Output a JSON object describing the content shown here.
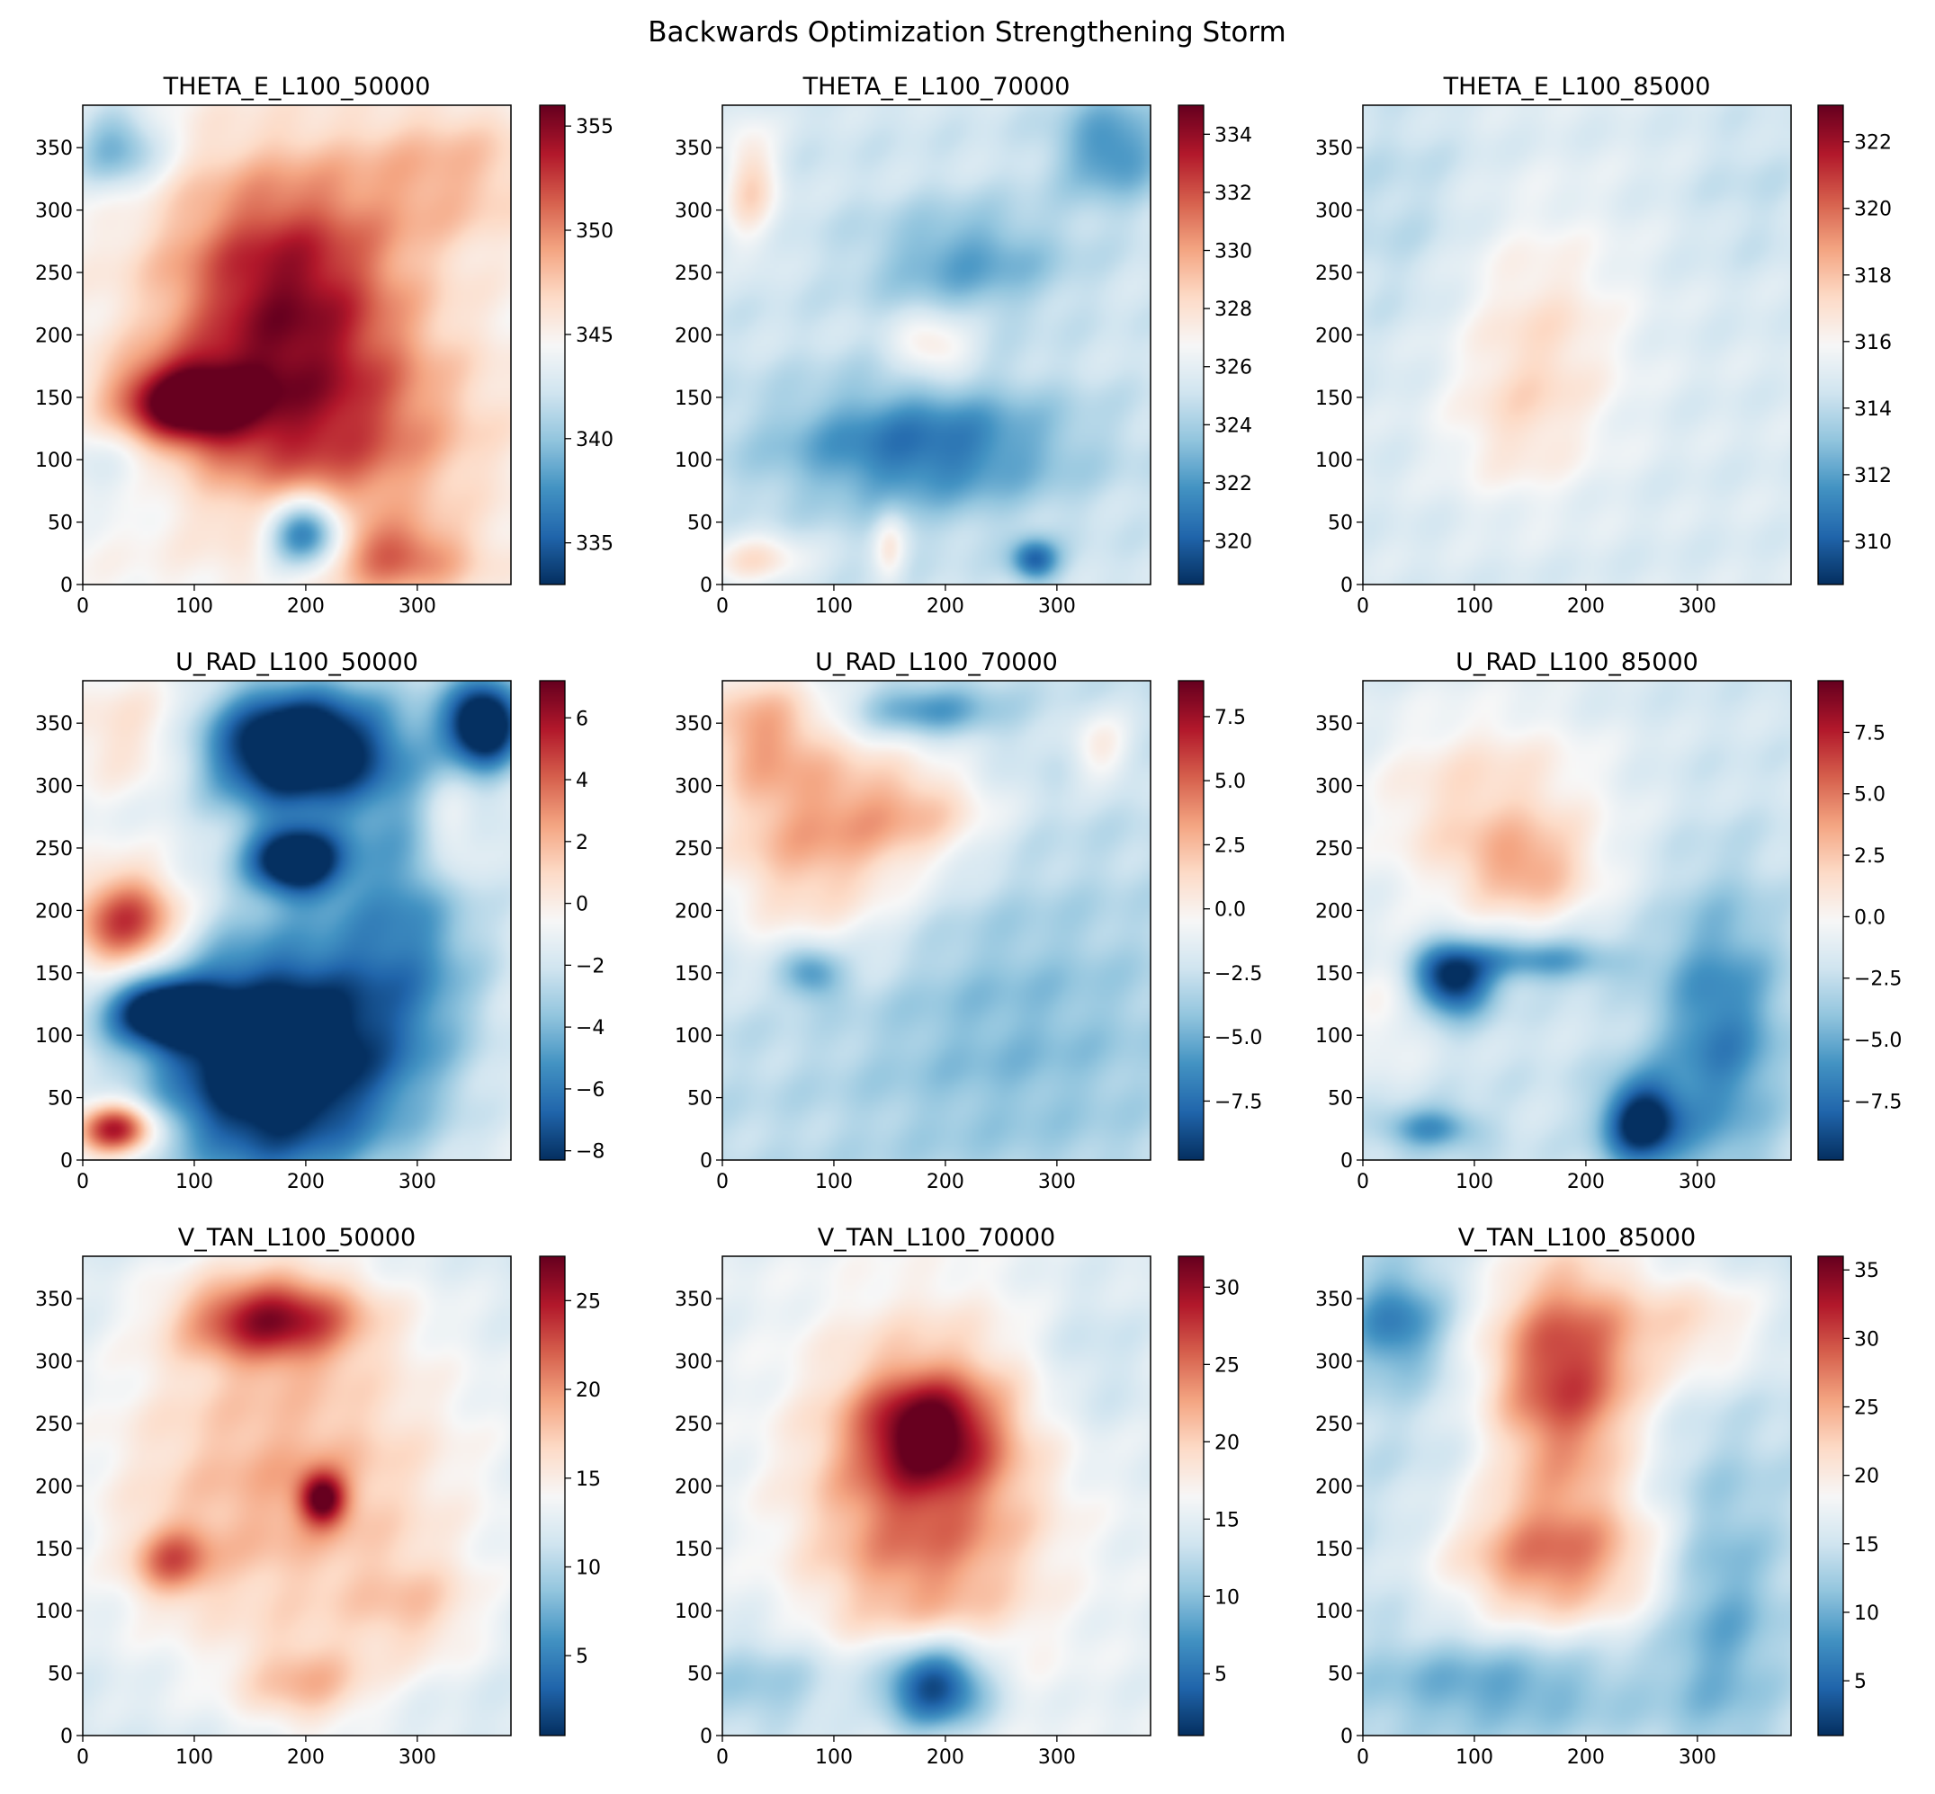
{
  "figure": {
    "title": "Backwards Optimization Strengthening Storm",
    "colormap": "RdBu_r",
    "colors": {
      "low": "#053061",
      "mid": "#f7f7f7",
      "high": "#67001f"
    }
  },
  "chart_data": [
    {
      "type": "heatmap",
      "title": "THETA_E_L100_50000",
      "x_ticks": [
        "0",
        "100",
        "200",
        "300"
      ],
      "y_ticks": [
        "0",
        "50",
        "100",
        "150",
        "200",
        "250",
        "300",
        "350"
      ],
      "xlim": [
        0,
        384
      ],
      "ylim": [
        0,
        384
      ],
      "colorbar": {
        "range": [
          333,
          356
        ],
        "ticks": [
          335,
          340,
          345,
          350,
          355
        ],
        "tick_labels": [
          "335",
          "340",
          "345",
          "350",
          "355"
        ]
      },
      "features": [
        {
          "x": 180,
          "y": 240,
          "sx": 75,
          "sy": 70,
          "v": 0.85
        },
        {
          "x": 90,
          "y": 145,
          "sx": 45,
          "sy": 25,
          "v": 1.0
        },
        {
          "x": 220,
          "y": 120,
          "sx": 90,
          "sy": 60,
          "v": 0.6
        },
        {
          "x": 200,
          "y": 40,
          "sx": 25,
          "sy": 20,
          "v": -1.0
        },
        {
          "x": 30,
          "y": 350,
          "sx": 30,
          "sy": 25,
          "v": -0.5
        },
        {
          "x": 330,
          "y": 330,
          "sx": 60,
          "sy": 40,
          "v": 0.3
        },
        {
          "x": 30,
          "y": 100,
          "sx": 50,
          "sy": 30,
          "v": -0.2
        },
        {
          "x": 280,
          "y": 20,
          "sx": 50,
          "sy": 20,
          "v": 0.5
        }
      ]
    },
    {
      "type": "heatmap",
      "title": "THETA_E_L100_70000",
      "x_ticks": [
        "0",
        "100",
        "200",
        "300"
      ],
      "y_ticks": [
        "0",
        "50",
        "100",
        "150",
        "200",
        "250",
        "300",
        "350"
      ],
      "xlim": [
        0,
        384
      ],
      "ylim": [
        0,
        384
      ],
      "colorbar": {
        "range": [
          318.5,
          335
        ],
        "ticks": [
          320,
          322,
          324,
          326,
          328,
          330,
          332,
          334
        ],
        "tick_labels": [
          "320",
          "322",
          "324",
          "326",
          "328",
          "330",
          "332",
          "334"
        ]
      },
      "features": [
        {
          "x": 0,
          "y": 0,
          "sx": 1000,
          "sy": 1000,
          "v": -0.2
        },
        {
          "x": 180,
          "y": 110,
          "sx": 90,
          "sy": 35,
          "v": -0.55
        },
        {
          "x": 220,
          "y": 260,
          "sx": 60,
          "sy": 30,
          "v": -0.35
        },
        {
          "x": 350,
          "y": 350,
          "sx": 35,
          "sy": 30,
          "v": -0.45
        },
        {
          "x": 25,
          "y": 320,
          "sx": 18,
          "sy": 35,
          "v": 0.4
        },
        {
          "x": 190,
          "y": 190,
          "sx": 25,
          "sy": 18,
          "v": 0.35
        },
        {
          "x": 30,
          "y": 20,
          "sx": 30,
          "sy": 15,
          "v": 0.35
        },
        {
          "x": 150,
          "y": 30,
          "sx": 10,
          "sy": 20,
          "v": 0.3
        },
        {
          "x": 280,
          "y": 20,
          "sx": 15,
          "sy": 12,
          "v": -0.6
        }
      ]
    },
    {
      "type": "heatmap",
      "title": "THETA_E_L100_85000",
      "x_ticks": [
        "0",
        "100",
        "200",
        "300"
      ],
      "y_ticks": [
        "0",
        "50",
        "100",
        "150",
        "200",
        "250",
        "300",
        "350"
      ],
      "xlim": [
        0,
        384
      ],
      "ylim": [
        0,
        384
      ],
      "colorbar": {
        "range": [
          308.7,
          323.1
        ],
        "ticks": [
          310,
          312,
          314,
          316,
          318,
          320,
          322
        ],
        "tick_labels": [
          "310",
          "312",
          "314",
          "316",
          "318",
          "320",
          "322"
        ]
      },
      "features": [
        {
          "x": 0,
          "y": 0,
          "sx": 1000,
          "sy": 1000,
          "v": -0.15
        },
        {
          "x": 160,
          "y": 195,
          "sx": 55,
          "sy": 70,
          "v": 0.3
        },
        {
          "x": 130,
          "y": 120,
          "sx": 45,
          "sy": 40,
          "v": 0.15
        },
        {
          "x": 30,
          "y": 300,
          "sx": 50,
          "sy": 70,
          "v": -0.12
        },
        {
          "x": 350,
          "y": 320,
          "sx": 40,
          "sy": 50,
          "v": -0.1
        }
      ]
    },
    {
      "type": "heatmap",
      "title": "U_RAD_L100_50000",
      "x_ticks": [
        "0",
        "100",
        "200",
        "300"
      ],
      "y_ticks": [
        "0",
        "50",
        "100",
        "150",
        "200",
        "250",
        "300",
        "350"
      ],
      "xlim": [
        0,
        384
      ],
      "ylim": [
        0,
        384
      ],
      "colorbar": {
        "range": [
          -8.3,
          7.2
        ],
        "ticks": [
          -8,
          -6,
          -4,
          -2,
          0,
          2,
          4,
          6
        ],
        "tick_labels": [
          "−8",
          "−6",
          "−4",
          "−2",
          "0",
          "2",
          "4",
          "6"
        ]
      },
      "features": [
        {
          "x": 0,
          "y": 0,
          "sx": 1000,
          "sy": 1000,
          "v": -0.1
        },
        {
          "x": 190,
          "y": 330,
          "sx": 60,
          "sy": 35,
          "v": -1.3
        },
        {
          "x": 360,
          "y": 350,
          "sx": 25,
          "sy": 25,
          "v": -1.2
        },
        {
          "x": 170,
          "y": 80,
          "sx": 70,
          "sy": 65,
          "v": -1.3
        },
        {
          "x": 70,
          "y": 120,
          "sx": 35,
          "sy": 20,
          "v": -1.0
        },
        {
          "x": 190,
          "y": 240,
          "sx": 30,
          "sy": 20,
          "v": -1.1
        },
        {
          "x": 290,
          "y": 180,
          "sx": 50,
          "sy": 100,
          "v": -0.5
        },
        {
          "x": 40,
          "y": 190,
          "sx": 35,
          "sy": 30,
          "v": 0.85
        },
        {
          "x": 30,
          "y": 25,
          "sx": 25,
          "sy": 15,
          "v": 1.0
        },
        {
          "x": 50,
          "y": 340,
          "sx": 50,
          "sy": 35,
          "v": 0.3
        },
        {
          "x": 330,
          "y": 260,
          "sx": 20,
          "sy": 35,
          "v": 0.3
        }
      ]
    },
    {
      "type": "heatmap",
      "title": "U_RAD_L100_70000",
      "x_ticks": [
        "0",
        "100",
        "200",
        "300"
      ],
      "y_ticks": [
        "0",
        "50",
        "100",
        "150",
        "200",
        "250",
        "300",
        "350"
      ],
      "xlim": [
        0,
        384
      ],
      "ylim": [
        0,
        384
      ],
      "colorbar": {
        "range": [
          -9.8,
          8.9
        ],
        "ticks": [
          -7.5,
          -5.0,
          -2.5,
          0.0,
          2.5,
          5.0,
          7.5
        ],
        "tick_labels": [
          "−7.5",
          "−5.0",
          "−2.5",
          "0.0",
          "2.5",
          "5.0",
          "7.5"
        ]
      },
      "features": [
        {
          "x": 0,
          "y": 0,
          "sx": 1000,
          "sy": 1000,
          "v": -0.25
        },
        {
          "x": 80,
          "y": 260,
          "sx": 70,
          "sy": 65,
          "v": 0.6
        },
        {
          "x": 30,
          "y": 350,
          "sx": 40,
          "sy": 35,
          "v": 0.45
        },
        {
          "x": 180,
          "y": 280,
          "sx": 50,
          "sy": 30,
          "v": 0.35
        },
        {
          "x": 180,
          "y": 360,
          "sx": 45,
          "sy": 15,
          "v": -0.4
        },
        {
          "x": 80,
          "y": 150,
          "sx": 20,
          "sy": 15,
          "v": -0.45
        },
        {
          "x": 260,
          "y": 100,
          "sx": 100,
          "sy": 80,
          "v": -0.2
        },
        {
          "x": 340,
          "y": 330,
          "sx": 20,
          "sy": 20,
          "v": 0.3
        }
      ]
    },
    {
      "type": "heatmap",
      "title": "U_RAD_L100_85000",
      "x_ticks": [
        "0",
        "100",
        "200",
        "300"
      ],
      "y_ticks": [
        "0",
        "50",
        "100",
        "150",
        "200",
        "250",
        "300",
        "350"
      ],
      "xlim": [
        0,
        384
      ],
      "ylim": [
        0,
        384
      ],
      "colorbar": {
        "range": [
          -9.9,
          9.6
        ],
        "ticks": [
          -7.5,
          -5.0,
          -2.5,
          0.0,
          2.5,
          5.0,
          7.5
        ],
        "tick_labels": [
          "−7.5",
          "−5.0",
          "−2.5",
          "0.0",
          "2.5",
          "5.0",
          "7.5"
        ]
      },
      "features": [
        {
          "x": 0,
          "y": 0,
          "sx": 1000,
          "sy": 1000,
          "v": -0.2
        },
        {
          "x": 110,
          "y": 280,
          "sx": 80,
          "sy": 60,
          "v": 0.4
        },
        {
          "x": 150,
          "y": 230,
          "sx": 40,
          "sy": 25,
          "v": 0.35
        },
        {
          "x": 80,
          "y": 145,
          "sx": 25,
          "sy": 20,
          "v": -0.9
        },
        {
          "x": 160,
          "y": 160,
          "sx": 50,
          "sy": 12,
          "v": -0.45
        },
        {
          "x": 250,
          "y": 30,
          "sx": 25,
          "sy": 25,
          "v": -0.9
        },
        {
          "x": 320,
          "y": 100,
          "sx": 40,
          "sy": 80,
          "v": -0.5
        },
        {
          "x": 60,
          "y": 25,
          "sx": 30,
          "sy": 12,
          "v": -0.45
        },
        {
          "x": 20,
          "y": 120,
          "sx": 30,
          "sy": 40,
          "v": 0.2
        }
      ]
    },
    {
      "type": "heatmap",
      "title": "V_TAN_L100_50000",
      "x_ticks": [
        "0",
        "100",
        "200",
        "300"
      ],
      "y_ticks": [
        "0",
        "50",
        "100",
        "150",
        "200",
        "250",
        "300",
        "350"
      ],
      "xlim": [
        0,
        384
      ],
      "ylim": [
        0,
        384
      ],
      "colorbar": {
        "range": [
          0.5,
          27.5
        ],
        "ticks": [
          5,
          10,
          15,
          20,
          25
        ],
        "tick_labels": [
          "5",
          "10",
          "15",
          "20",
          "25"
        ]
      },
      "features": [
        {
          "x": 0,
          "y": 0,
          "sx": 1000,
          "sy": 1000,
          "v": -0.2
        },
        {
          "x": 180,
          "y": 200,
          "sx": 120,
          "sy": 110,
          "v": 0.55
        },
        {
          "x": 170,
          "y": 335,
          "sx": 55,
          "sy": 25,
          "v": 0.85
        },
        {
          "x": 215,
          "y": 190,
          "sx": 15,
          "sy": 15,
          "v": 0.8
        },
        {
          "x": 80,
          "y": 140,
          "sx": 25,
          "sy": 20,
          "v": 0.5
        },
        {
          "x": 200,
          "y": 40,
          "sx": 40,
          "sy": 25,
          "v": 0.35
        },
        {
          "x": 300,
          "y": 100,
          "sx": 40,
          "sy": 30,
          "v": 0.25
        }
      ]
    },
    {
      "type": "heatmap",
      "title": "V_TAN_L100_70000",
      "x_ticks": [
        "0",
        "100",
        "200",
        "300"
      ],
      "y_ticks": [
        "0",
        "50",
        "100",
        "150",
        "200",
        "250",
        "300",
        "350"
      ],
      "xlim": [
        0,
        384
      ],
      "ylim": [
        0,
        384
      ],
      "colorbar": {
        "range": [
          1,
          32
        ],
        "ticks": [
          5,
          10,
          15,
          20,
          25,
          30
        ],
        "tick_labels": [
          "5",
          "10",
          "15",
          "20",
          "25",
          "30"
        ]
      },
      "features": [
        {
          "x": 0,
          "y": 0,
          "sx": 1000,
          "sy": 1000,
          "v": -0.1
        },
        {
          "x": 180,
          "y": 190,
          "sx": 75,
          "sy": 95,
          "v": 0.7
        },
        {
          "x": 185,
          "y": 245,
          "sx": 40,
          "sy": 30,
          "v": 0.7
        },
        {
          "x": 190,
          "y": 40,
          "sx": 35,
          "sy": 25,
          "v": -1.0
        },
        {
          "x": 40,
          "y": 40,
          "sx": 60,
          "sy": 30,
          "v": -0.3
        },
        {
          "x": 330,
          "y": 300,
          "sx": 40,
          "sy": 50,
          "v": -0.15
        }
      ]
    },
    {
      "type": "heatmap",
      "title": "V_TAN_L100_85000",
      "x_ticks": [
        "0",
        "100",
        "200",
        "300"
      ],
      "y_ticks": [
        "0",
        "50",
        "100",
        "150",
        "200",
        "250",
        "300",
        "350"
      ],
      "xlim": [
        0,
        384
      ],
      "ylim": [
        0,
        384
      ],
      "colorbar": {
        "range": [
          1,
          36
        ],
        "ticks": [
          5,
          10,
          15,
          20,
          25,
          30,
          35
        ],
        "tick_labels": [
          "5",
          "10",
          "15",
          "20",
          "25",
          "30",
          "35"
        ]
      },
      "features": [
        {
          "x": 0,
          "y": 0,
          "sx": 1000,
          "sy": 1000,
          "v": -0.25
        },
        {
          "x": 180,
          "y": 290,
          "sx": 50,
          "sy": 70,
          "v": 0.95
        },
        {
          "x": 170,
          "y": 140,
          "sx": 70,
          "sy": 40,
          "v": 0.7
        },
        {
          "x": 300,
          "y": 330,
          "sx": 50,
          "sy": 35,
          "v": 0.35
        },
        {
          "x": 30,
          "y": 330,
          "sx": 30,
          "sy": 30,
          "v": -0.45
        },
        {
          "x": 320,
          "y": 100,
          "sx": 35,
          "sy": 80,
          "v": -0.3
        },
        {
          "x": 120,
          "y": 40,
          "sx": 80,
          "sy": 25,
          "v": -0.3
        }
      ]
    }
  ]
}
